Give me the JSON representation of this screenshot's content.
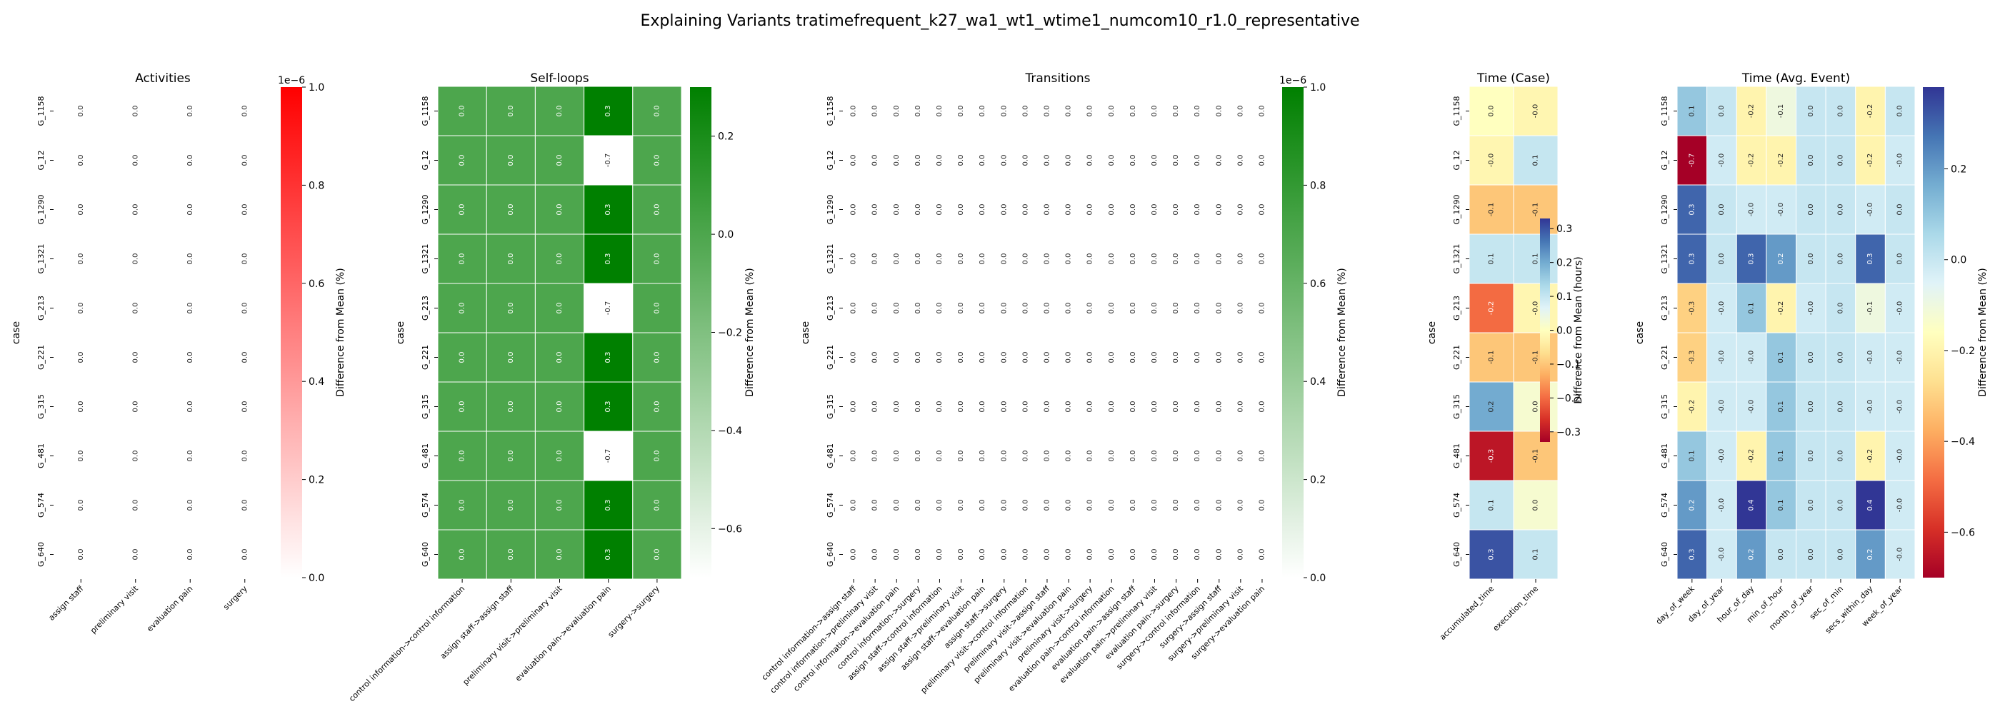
{
  "title": "Explaining Variants tratimefrequent_k27_wa1_wt1_wtime1_numcom10_r1.0_representative",
  "cases": [
    "G_1158",
    "G_12",
    "G_1290",
    "G_1321",
    "G_213",
    "G_221",
    "G_315",
    "G_481",
    "G_574",
    "G_640"
  ],
  "row_axis_label": "case",
  "chart_data": [
    {
      "type": "heatmap",
      "title": "Activities",
      "columns": [
        "assign staff",
        "preliminary visit",
        "evaluation pain",
        "surgery"
      ],
      "values": [
        [
          0,
          0,
          0,
          0
        ],
        [
          0,
          0,
          0,
          0
        ],
        [
          0,
          0,
          0,
          0
        ],
        [
          0,
          0,
          0,
          0
        ],
        [
          0,
          0,
          0,
          0
        ],
        [
          0,
          0,
          0,
          0
        ],
        [
          0,
          0,
          0,
          0
        ],
        [
          0,
          0,
          0,
          0
        ],
        [
          0,
          0,
          0,
          0
        ],
        [
          0,
          0,
          0,
          0
        ]
      ],
      "cell_labels": [
        [
          "0.0",
          "0.0",
          "0.0",
          "0.0"
        ],
        [
          "0.0",
          "0.0",
          "0.0",
          "0.0"
        ],
        [
          "0.0",
          "0.0",
          "0.0",
          "0.0"
        ],
        [
          "0.0",
          "0.0",
          "0.0",
          "0.0"
        ],
        [
          "0.0",
          "0.0",
          "0.0",
          "0.0"
        ],
        [
          "0.0",
          "0.0",
          "0.0",
          "0.0"
        ],
        [
          "0.0",
          "0.0",
          "0.0",
          "0.0"
        ],
        [
          "0.0",
          "0.0",
          "0.0",
          "0.0"
        ],
        [
          "0.0",
          "0.0",
          "0.0",
          "0.0"
        ],
        [
          "0.0",
          "0.0",
          "0.0",
          "0.0"
        ]
      ],
      "colormap": "white_to_red",
      "colors": [
        "#ffffff",
        "#ff0000"
      ],
      "vmin": 0,
      "vmax": 1,
      "colorbar_ticks": [
        "0.0",
        "0.2",
        "0.4",
        "0.6",
        "0.8",
        "1.0"
      ],
      "colorbar_tick_values": [
        0,
        0.2,
        0.4,
        0.6,
        0.8,
        1.0
      ],
      "colorbar_exponent": "1e−6",
      "colorbar_label": "Difference from Mean (%)"
    },
    {
      "type": "heatmap",
      "title": "Self-loops",
      "columns": [
        "control information->control information",
        "assign staff->assign staff",
        "preliminary visit->preliminary visit",
        "evaluation pain->evaluation pain",
        "surgery->surgery"
      ],
      "values": [
        [
          0,
          0,
          0,
          0.3,
          0
        ],
        [
          0,
          0,
          0,
          -0.7,
          0
        ],
        [
          0,
          0,
          0,
          0.3,
          0
        ],
        [
          0,
          0,
          0,
          0.3,
          0
        ],
        [
          0,
          0,
          0,
          -0.7,
          0
        ],
        [
          0,
          0,
          0,
          0.3,
          0
        ],
        [
          0,
          0,
          0,
          0.3,
          0
        ],
        [
          0,
          0,
          0,
          -0.7,
          0
        ],
        [
          0,
          0,
          0,
          0.3,
          0
        ],
        [
          0,
          0,
          0,
          0.3,
          0
        ]
      ],
      "cell_labels": [
        [
          "0.0",
          "0.0",
          "0.0",
          "0.3",
          "0.0"
        ],
        [
          "0.0",
          "0.0",
          "0.0",
          "-0.7",
          "0.0"
        ],
        [
          "0.0",
          "0.0",
          "0.0",
          "0.3",
          "0.0"
        ],
        [
          "0.0",
          "0.0",
          "0.0",
          "0.3",
          "0.0"
        ],
        [
          "0.0",
          "0.0",
          "0.0",
          "-0.7",
          "0.0"
        ],
        [
          "0.0",
          "0.0",
          "0.0",
          "0.3",
          "0.0"
        ],
        [
          "0.0",
          "0.0",
          "0.0",
          "0.3",
          "0.0"
        ],
        [
          "0.0",
          "0.0",
          "0.0",
          "-0.7",
          "0.0"
        ],
        [
          "0.0",
          "0.0",
          "0.0",
          "0.3",
          "0.0"
        ],
        [
          "0.0",
          "0.0",
          "0.0",
          "0.3",
          "0.0"
        ]
      ],
      "colormap": "white_to_green",
      "colors": [
        "#ffffff",
        "#008000"
      ],
      "vmin": -0.7,
      "vmax": 0.3,
      "colorbar_ticks": [
        "−0.6",
        "−0.4",
        "−0.2",
        "0.0",
        "0.2"
      ],
      "colorbar_tick_values": [
        -0.6,
        -0.4,
        -0.2,
        0.0,
        0.2
      ],
      "colorbar_exponent": "",
      "colorbar_label": "Difference from Mean (%)"
    },
    {
      "type": "heatmap",
      "title": "Transitions",
      "columns": [
        "control information->assign staff",
        "control information->preliminary visit",
        "control information->evaluation pain",
        "control information->surgery",
        "assign staff->control information",
        "assign staff->preliminary visit",
        "assign staff->evaluation pain",
        "assign staff->surgery",
        "preliminary visit->control information",
        "preliminary visit->assign staff",
        "preliminary visit->evaluation pain",
        "preliminary visit->surgery",
        "evaluation pain->control information",
        "evaluation pain->assign staff",
        "evaluation pain->preliminary visit",
        "evaluation pain->surgery",
        "surgery->control information",
        "surgery->assign staff",
        "surgery->preliminary visit",
        "surgery->evaluation pain"
      ],
      "values": "zeros_10x20",
      "cell_label_all": "0.0",
      "colormap": "white_to_green",
      "colors": [
        "#ffffff",
        "#008000"
      ],
      "vmin": 0,
      "vmax": 1,
      "colorbar_ticks": [
        "0.0",
        "0.2",
        "0.4",
        "0.6",
        "0.8",
        "1.0"
      ],
      "colorbar_tick_values": [
        0,
        0.2,
        0.4,
        0.6,
        0.8,
        1.0
      ],
      "colorbar_exponent": "1e−6",
      "colorbar_label": "Difference from Mean (%)"
    },
    {
      "type": "heatmap",
      "title": "Time (Case)",
      "columns": [
        "accumulated_time",
        "execution_time"
      ],
      "values": [
        [
          0.0,
          -0.02
        ],
        [
          -0.02,
          0.1
        ],
        [
          -0.1,
          -0.1
        ],
        [
          0.1,
          0.1
        ],
        [
          -0.2,
          -0.02
        ],
        [
          -0.1,
          -0.1
        ],
        [
          0.2,
          0.02
        ],
        [
          -0.3,
          -0.1
        ],
        [
          0.1,
          0.02
        ],
        [
          0.3,
          0.1
        ]
      ],
      "cell_labels": [
        [
          "0.0",
          "-0.0"
        ],
        [
          "-0.0",
          "0.1"
        ],
        [
          "-0.1",
          "-0.1"
        ],
        [
          "0.1",
          "0.1"
        ],
        [
          "-0.2",
          "-0.0"
        ],
        [
          "-0.1",
          "-0.1"
        ],
        [
          "0.2",
          "0.0"
        ],
        [
          "-0.3",
          "-0.1"
        ],
        [
          "0.1",
          "0.0"
        ],
        [
          "0.3",
          "0.1"
        ]
      ],
      "colormap": "RdYlBu",
      "vmin": -0.33,
      "vmax": 0.33,
      "colorbar_ticks": [
        "−0.3",
        "−0.2",
        "−0.1",
        "0.0",
        "0.1",
        "0.2",
        "0.3"
      ],
      "colorbar_tick_values": [
        -0.3,
        -0.2,
        -0.1,
        0.0,
        0.1,
        0.2,
        0.3
      ],
      "colorbar_exponent": "",
      "colorbar_label": "Difference from Mean (hours)"
    },
    {
      "type": "heatmap",
      "title": "Time (Avg. Event)",
      "columns": [
        "day_of_week",
        "day_of_year",
        "hour_of_day",
        "min_of_hour",
        "month_of_year",
        "sec_of_min",
        "secs_within_day",
        "week_of_year"
      ],
      "values": [
        [
          0.1,
          0.0,
          -0.2,
          -0.1,
          0.0,
          0.0,
          -0.2,
          0.0
        ],
        [
          -0.7,
          -0.02,
          -0.2,
          -0.2,
          0.0,
          0.0,
          -0.2,
          -0.02
        ],
        [
          0.3,
          0.0,
          -0.02,
          -0.02,
          0.0,
          0.0,
          -0.02,
          0.0
        ],
        [
          0.3,
          0.0,
          0.3,
          0.2,
          0.0,
          0.0,
          0.3,
          0.0
        ],
        [
          -0.3,
          -0.02,
          0.1,
          -0.2,
          -0.02,
          0.0,
          -0.1,
          -0.02
        ],
        [
          -0.3,
          -0.02,
          -0.02,
          0.1,
          0.0,
          0.0,
          -0.02,
          -0.02
        ],
        [
          -0.2,
          -0.02,
          -0.02,
          0.1,
          0.0,
          0.0,
          -0.02,
          -0.02
        ],
        [
          0.1,
          -0.02,
          -0.2,
          0.1,
          0.0,
          0.0,
          -0.2,
          -0.02
        ],
        [
          0.2,
          -0.02,
          0.4,
          0.1,
          0.0,
          0.0,
          0.4,
          -0.02
        ],
        [
          0.3,
          -0.02,
          0.2,
          0.0,
          0.0,
          0.0,
          0.2,
          -0.02
        ]
      ],
      "cell_labels": [
        [
          "0.1",
          "0.0",
          "-0.2",
          "-0.1",
          "0.0",
          "0.0",
          "-0.2",
          "0.0"
        ],
        [
          "-0.7",
          "-0.0",
          "-0.2",
          "-0.2",
          "0.0",
          "0.0",
          "-0.2",
          "-0.0"
        ],
        [
          "0.3",
          "0.0",
          "-0.0",
          "-0.0",
          "0.0",
          "0.0",
          "-0.0",
          "0.0"
        ],
        [
          "0.3",
          "0.0",
          "0.3",
          "0.2",
          "0.0",
          "0.0",
          "0.3",
          "0.0"
        ],
        [
          "-0.3",
          "-0.0",
          "0.1",
          "-0.2",
          "-0.0",
          "0.0",
          "-0.1",
          "-0.0"
        ],
        [
          "-0.3",
          "-0.0",
          "-0.0",
          "0.1",
          "0.0",
          "0.0",
          "-0.0",
          "-0.0"
        ],
        [
          "-0.2",
          "-0.0",
          "-0.0",
          "0.1",
          "0.0",
          "0.0",
          "-0.0",
          "-0.0"
        ],
        [
          "0.1",
          "-0.0",
          "-0.2",
          "0.1",
          "0.0",
          "0.0",
          "-0.2",
          "-0.0"
        ],
        [
          "0.2",
          "-0.0",
          "0.4",
          "0.1",
          "0.0",
          "0.0",
          "0.4",
          "-0.0"
        ],
        [
          "0.3",
          "-0.0",
          "0.2",
          "0.0",
          "0.0",
          "0.0",
          "0.2",
          "-0.0"
        ]
      ],
      "colormap": "RdYlBu",
      "vmin": -0.7,
      "vmax": 0.38,
      "colorbar_ticks": [
        "−0.6",
        "−0.4",
        "−0.2",
        "0.0",
        "0.2"
      ],
      "colorbar_tick_values": [
        -0.6,
        -0.4,
        -0.2,
        0.0,
        0.2
      ],
      "colorbar_exponent": "",
      "colorbar_label": "Difference from Mean (%)"
    }
  ]
}
